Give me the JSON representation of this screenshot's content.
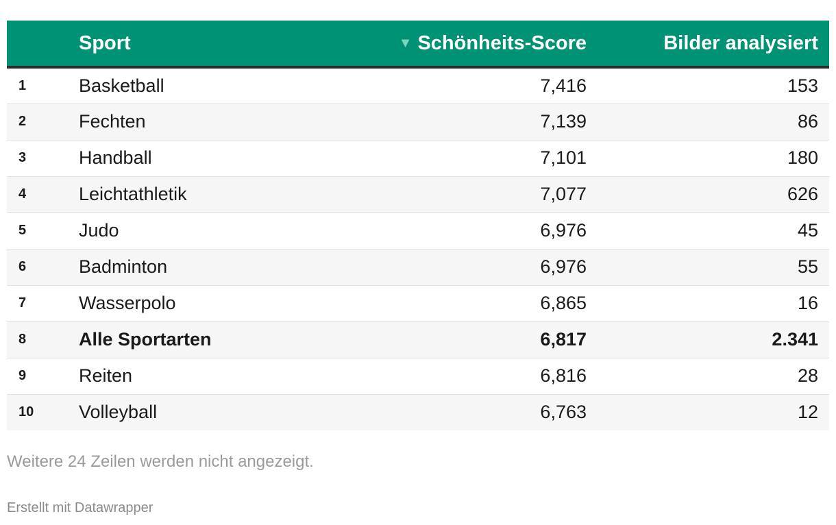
{
  "chart_data": {
    "type": "table",
    "columns": {
      "sport": "Sport",
      "score": "Schönheits-Score",
      "count": "Bilder analysiert"
    },
    "sort_indicator": "▼",
    "sorted_by": "score",
    "sort_direction": "descending",
    "rows": [
      {
        "rank": "1",
        "sport": "Basketball",
        "score": "7,416",
        "count": "153",
        "bold": false
      },
      {
        "rank": "2",
        "sport": "Fechten",
        "score": "7,139",
        "count": "86",
        "bold": false
      },
      {
        "rank": "3",
        "sport": "Handball",
        "score": "7,101",
        "count": "180",
        "bold": false
      },
      {
        "rank": "4",
        "sport": "Leichtathletik",
        "score": "7,077",
        "count": "626",
        "bold": false
      },
      {
        "rank": "5",
        "sport": "Judo",
        "score": "6,976",
        "count": "45",
        "bold": false
      },
      {
        "rank": "6",
        "sport": "Badminton",
        "score": "6,976",
        "count": "55",
        "bold": false
      },
      {
        "rank": "7",
        "sport": "Wasserpolo",
        "score": "6,865",
        "count": "16",
        "bold": false
      },
      {
        "rank": "8",
        "sport": "Alle Sportarten",
        "score": "6,817",
        "count": "2.341",
        "bold": true
      },
      {
        "rank": "9",
        "sport": "Reiten",
        "score": "6,816",
        "count": "28",
        "bold": false
      },
      {
        "rank": "10",
        "sport": "Volleyball",
        "score": "6,763",
        "count": "12",
        "bold": false
      }
    ],
    "more_rows_note": "Weitere 24 Zeilen werden nicht angezeigt."
  },
  "footer": {
    "credit": "Erstellt mit Datawrapper"
  },
  "colors": {
    "header_background": "#009274",
    "header_text": "#ffffff",
    "sort_arrow": "#7ed3be",
    "row_alt": "#f6f6f6",
    "header_rule": "#2b2b2b"
  }
}
